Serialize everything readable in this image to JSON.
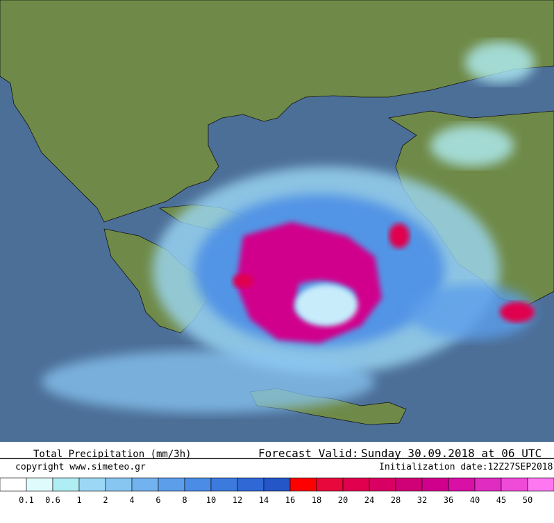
{
  "header": {
    "title": "Total Precipitation (mm/3h)",
    "valid_label": "Forecast Valid:",
    "valid_time": "Sunday 30.09.2018 at 06 UTC",
    "copyright": "copyright www.simeteo.gr",
    "init": "Initialization date:12Z27SEP2018"
  },
  "legend": {
    "colors": [
      "#ffffff",
      "#e0fbfb",
      "#b0eef6",
      "#9cd8f6",
      "#88c6f2",
      "#72b2ee",
      "#5c9eea",
      "#4a8ce6",
      "#3c7ade",
      "#3068d6",
      "#2456c8",
      "#ff0000",
      "#e8083c",
      "#e0004e",
      "#d80062",
      "#d00076",
      "#d0008c",
      "#d810a6",
      "#e02cc0",
      "#f04ad8",
      "#ff78f2"
    ],
    "labels": [
      "0.1",
      "0.6",
      "1",
      "2",
      "4",
      "6",
      "8",
      "10",
      "12",
      "14",
      "16",
      "18",
      "20",
      "24",
      "28",
      "32",
      "36",
      "40",
      "45",
      "50"
    ]
  }
}
